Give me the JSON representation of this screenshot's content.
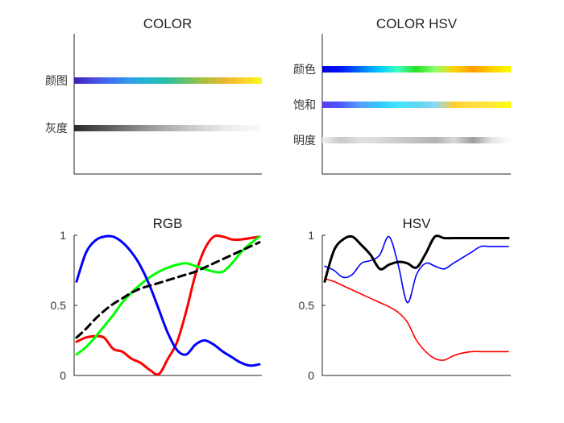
{
  "chart_data": [
    {
      "type": "colorbar",
      "title": "COLOR",
      "rows": [
        {
          "label": "颜图",
          "colors": [
            "#3a22b0",
            "#4a4ae0",
            "#3f74f0",
            "#2f9ee8",
            "#22b8cc",
            "#2cbfa0",
            "#69c266",
            "#b0bd3c",
            "#e8b830",
            "#fbd12a",
            "#f9f91e"
          ]
        },
        {
          "label": "灰度",
          "colors": [
            "#2a2a2a",
            "#474747",
            "#636363",
            "#7f7f7f",
            "#999999",
            "#b0b0b0",
            "#c6c6c6",
            "#d8d8d8",
            "#e8e8e8",
            "#f3f3f3",
            "#fbfbfb"
          ]
        }
      ]
    },
    {
      "type": "colorbar",
      "title": "COLOR HSV",
      "rows": [
        {
          "label": "颜色",
          "colors": [
            "#0000d8",
            "#0016ff",
            "#0070ff",
            "#00c8ff",
            "#40ffbf",
            "#28e020",
            "#8fff70",
            "#ffd200",
            "#ff9e00",
            "#ffd000",
            "#ffff00"
          ]
        },
        {
          "label": "饱和",
          "colors": [
            "#5a3cf0",
            "#4a5cff",
            "#5a9cff",
            "#30c8ff",
            "#44e4ff",
            "#5ad8f0",
            "#8ad8f0",
            "#ffd030",
            "#ffe040",
            "#ffe838",
            "#ffff00"
          ]
        },
        {
          "label": "明度",
          "colors": [
            "#f0f0f0",
            "#c8c8c8",
            "#e0e0e0",
            "#dadada",
            "#cccccc",
            "#c0c0c0",
            "#b2b2b2",
            "#d8d8d8",
            "#9c9c9c",
            "#e6e6e6",
            "#ffffff"
          ]
        }
      ]
    },
    {
      "type": "line",
      "title": "RGB",
      "x": [
        0,
        0.05,
        0.1,
        0.15,
        0.2,
        0.25,
        0.3,
        0.35,
        0.4,
        0.45,
        0.5,
        0.55,
        0.6,
        0.65,
        0.7,
        0.75,
        0.8,
        0.85,
        0.9,
        0.95,
        1
      ],
      "ylim": [
        0,
        1
      ],
      "yticks": [
        0,
        0.5,
        1
      ],
      "series": [
        {
          "color": "#ff0000",
          "style": "solid",
          "width": 3,
          "values": [
            0.24,
            0.27,
            0.28,
            0.27,
            0.19,
            0.17,
            0.12,
            0.09,
            0.04,
            0.01,
            0.12,
            0.24,
            0.46,
            0.72,
            0.9,
            0.99,
            0.99,
            0.97,
            0.97,
            0.98,
            0.99
          ]
        },
        {
          "color": "#00ff00",
          "style": "solid",
          "width": 3,
          "values": [
            0.15,
            0.2,
            0.27,
            0.35,
            0.43,
            0.52,
            0.59,
            0.65,
            0.7,
            0.74,
            0.77,
            0.79,
            0.8,
            0.78,
            0.76,
            0.74,
            0.74,
            0.8,
            0.88,
            0.94,
            0.99
          ]
        },
        {
          "color": "#0000ff",
          "style": "solid",
          "width": 3,
          "values": [
            0.67,
            0.87,
            0.96,
            0.99,
            0.99,
            0.95,
            0.88,
            0.78,
            0.64,
            0.47,
            0.3,
            0.18,
            0.15,
            0.22,
            0.25,
            0.22,
            0.17,
            0.13,
            0.09,
            0.07,
            0.08
          ]
        },
        {
          "color": "#000000",
          "style": "dashed",
          "width": 3,
          "values": [
            0.27,
            0.33,
            0.4,
            0.46,
            0.51,
            0.55,
            0.59,
            0.62,
            0.64,
            0.66,
            0.68,
            0.7,
            0.72,
            0.74,
            0.77,
            0.8,
            0.83,
            0.86,
            0.89,
            0.92,
            0.95
          ]
        }
      ]
    },
    {
      "type": "line",
      "title": "HSV",
      "x": [
        0,
        0.05,
        0.1,
        0.15,
        0.2,
        0.25,
        0.3,
        0.35,
        0.4,
        0.45,
        0.5,
        0.55,
        0.6,
        0.65,
        0.7,
        0.75,
        0.8,
        0.85,
        0.9,
        0.95,
        1
      ],
      "ylim": [
        0,
        1
      ],
      "yticks": [
        0,
        0.5,
        1
      ],
      "series": [
        {
          "color": "#ff0000",
          "style": "solid",
          "width": 1.6,
          "values": [
            0.69,
            0.67,
            0.64,
            0.61,
            0.58,
            0.55,
            0.52,
            0.49,
            0.45,
            0.38,
            0.25,
            0.17,
            0.12,
            0.11,
            0.14,
            0.16,
            0.17,
            0.17,
            0.17,
            0.17,
            0.17
          ]
        },
        {
          "color": "#0000ff",
          "style": "solid",
          "width": 1.6,
          "values": [
            0.78,
            0.75,
            0.7,
            0.72,
            0.8,
            0.82,
            0.86,
            0.99,
            0.79,
            0.52,
            0.72,
            0.8,
            0.78,
            0.76,
            0.8,
            0.84,
            0.88,
            0.92,
            0.92,
            0.92,
            0.92
          ]
        },
        {
          "color": "#000000",
          "style": "solid",
          "width": 3,
          "values": [
            0.67,
            0.89,
            0.97,
            0.99,
            0.93,
            0.86,
            0.76,
            0.79,
            0.81,
            0.8,
            0.77,
            0.87,
            0.99,
            0.98,
            0.98,
            0.98,
            0.98,
            0.98,
            0.98,
            0.98,
            0.98
          ]
        }
      ]
    }
  ]
}
